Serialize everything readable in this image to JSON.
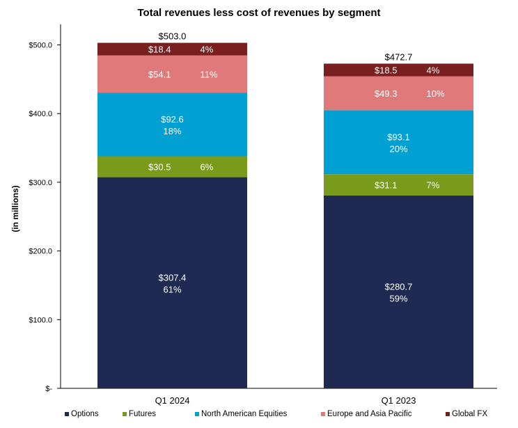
{
  "chart_data": {
    "type": "stacked-bar",
    "title": "Total revenues less cost of revenues by segment",
    "ylabel": "(in millions)",
    "xlabel": "",
    "ylim": [
      0,
      530
    ],
    "yticks": [
      {
        "value": 0,
        "label": "$-"
      },
      {
        "value": 100,
        "label": "$100.0"
      },
      {
        "value": 200,
        "label": "$200.0"
      },
      {
        "value": 300,
        "label": "$300.0"
      },
      {
        "value": 400,
        "label": "$400.0"
      },
      {
        "value": 500,
        "label": "$500.0"
      }
    ],
    "categories": [
      "Q1 2024",
      "Q1 2023"
    ],
    "totals": [
      "$503.0",
      "$472.7"
    ],
    "series": [
      {
        "name": "Options",
        "color": "#1f2a52",
        "values": [
          307.4,
          280.7
        ],
        "labels": [
          "$307.4",
          "$280.7"
        ],
        "pcts": [
          "61%",
          "59%"
        ],
        "layout": "stacked"
      },
      {
        "name": "Futures",
        "color": "#7a9a1b",
        "values": [
          30.5,
          31.1
        ],
        "labels": [
          "$30.5",
          "$31.1"
        ],
        "pcts": [
          "6%",
          "7%"
        ],
        "layout": "inline"
      },
      {
        "name": "North American Equities",
        "color": "#00a0d2",
        "values": [
          92.6,
          93.1
        ],
        "labels": [
          "$92.6",
          "$93.1"
        ],
        "pcts": [
          "18%",
          "20%"
        ],
        "layout": "stacked"
      },
      {
        "name": "Europe and Asia Pacific",
        "color": "#e07a7a",
        "values": [
          54.1,
          49.3
        ],
        "labels": [
          "$54.1",
          "$49.3"
        ],
        "pcts": [
          "11%",
          "10%"
        ],
        "layout": "inline"
      },
      {
        "name": "Global FX",
        "color": "#7a1f1f",
        "values": [
          18.4,
          18.5
        ],
        "labels": [
          "$18.4",
          "$18.5"
        ],
        "pcts": [
          "4%",
          "4%"
        ],
        "layout": "inline"
      }
    ],
    "legend_position": "bottom",
    "grid": false
  }
}
